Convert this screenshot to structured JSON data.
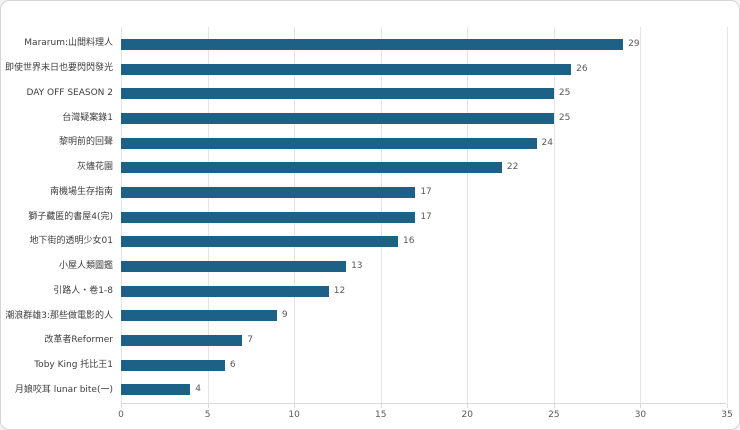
{
  "chart_data": {
    "type": "bar",
    "orientation": "horizontal",
    "title": "",
    "xlabel": "",
    "ylabel": "",
    "categories": [
      "Mararum:山間料理人",
      "即使世界末日也要閃閃發光",
      "DAY OFF SEASON 2",
      "台灣疑案錄1",
      "黎明前的回聲",
      "灰燼花園",
      "南機場生存指南",
      "獅子藏匿的書屋4(完)",
      "地下街的透明少女01",
      "小屋人類圖鑑",
      "引路人・卷1-8",
      "潮浪群雄3:那些做電影的人",
      "改革者Reformer",
      "Toby King 托比王1",
      "月娘咬耳 lunar bite(一)"
    ],
    "values": [
      29,
      26,
      25,
      25,
      24,
      22,
      17,
      17,
      16,
      13,
      12,
      9,
      7,
      6,
      4
    ],
    "x_ticks": [
      0,
      5,
      10,
      15,
      20,
      25,
      30,
      35
    ],
    "xlim": [
      0,
      35
    ],
    "grid": "vertical",
    "data_labels": true,
    "legend": "none"
  },
  "colors": {
    "bar": "#1d6286",
    "gridline": "#e4e4e4",
    "axis_line": "#d9d9d9",
    "category_label": "#3d3d3d",
    "value_label": "#595959",
    "tick_label": "#595959",
    "frame_border": "#d5d5d5",
    "background": "#ffffff"
  }
}
